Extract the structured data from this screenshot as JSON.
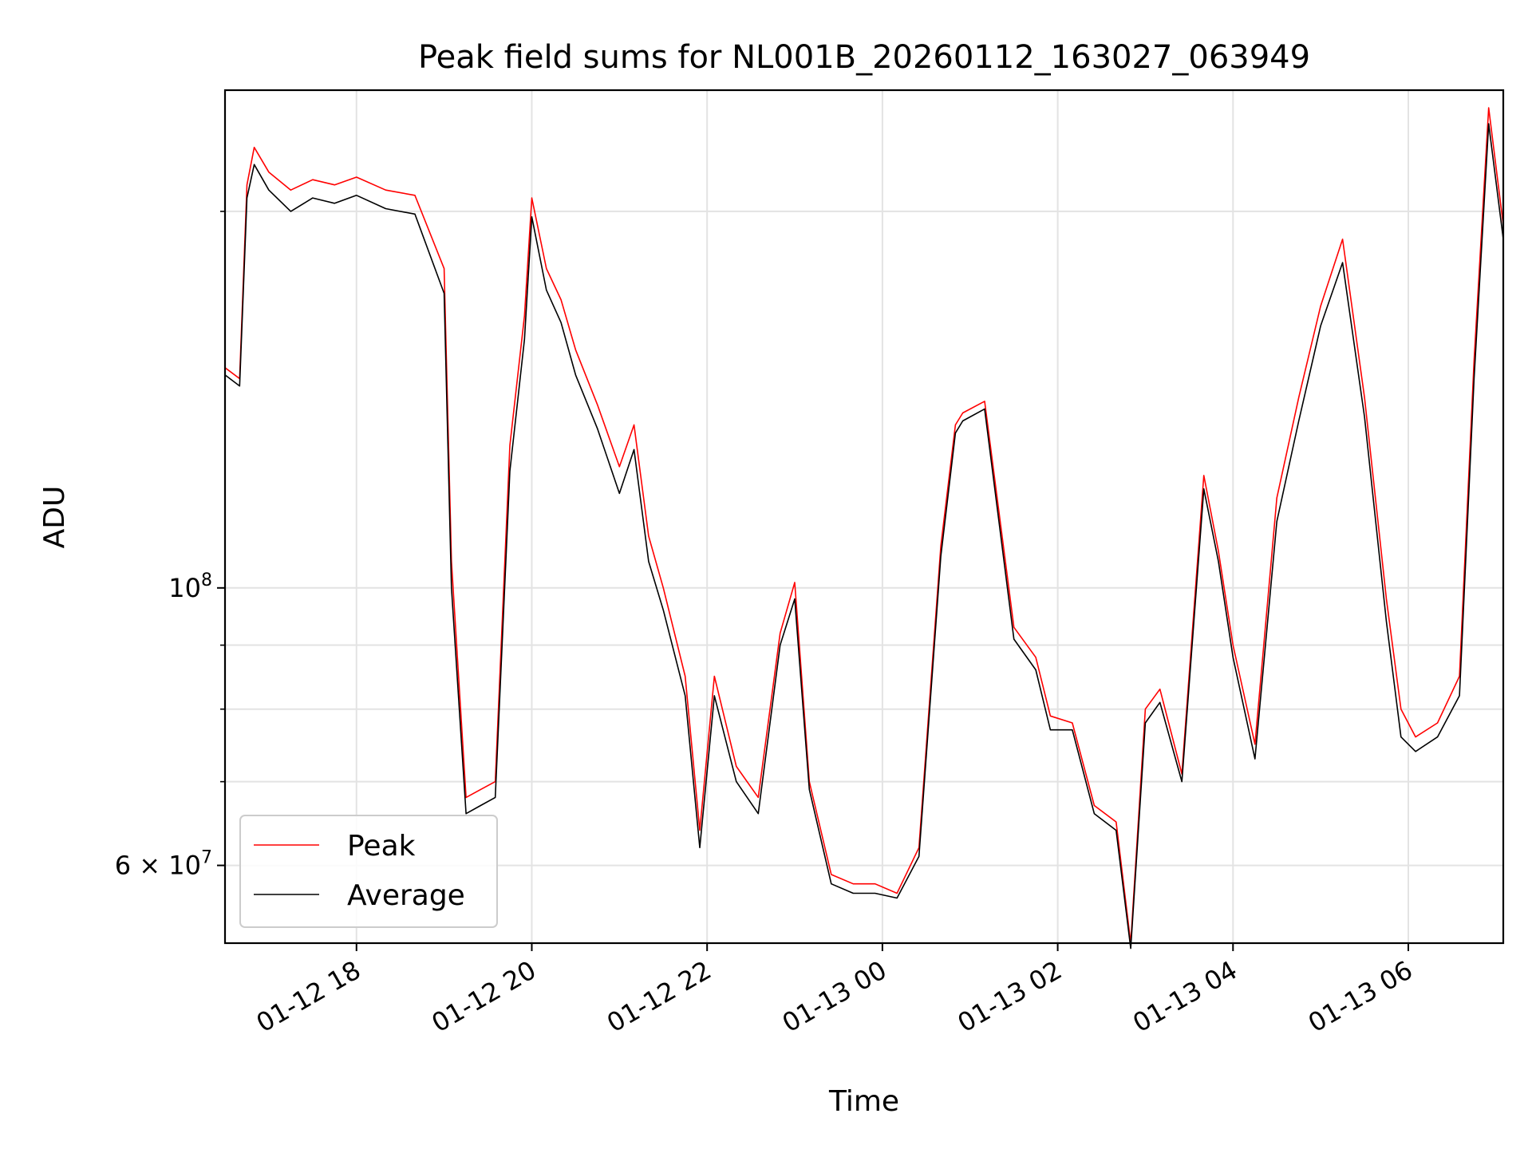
{
  "chart_data": {
    "type": "line",
    "title": "Peak field sums for NL001B_20260112_163027_063949",
    "xlabel": "Time",
    "ylabel": "ADU",
    "yscale": "log",
    "xlim": [
      "2026-01-12 16:30",
      "2026-01-13 07:05"
    ],
    "ylim": [
      52000000,
      250000000
    ],
    "grid": true,
    "legend_position": "lower-left",
    "x_ticks": [
      {
        "t": "2026-01-12 18:00",
        "label": "01-12 18"
      },
      {
        "t": "2026-01-12 20:00",
        "label": "01-12 20"
      },
      {
        "t": "2026-01-12 22:00",
        "label": "01-12 22"
      },
      {
        "t": "2026-01-13 00:00",
        "label": "01-13 00"
      },
      {
        "t": "2026-01-13 02:00",
        "label": "01-13 02"
      },
      {
        "t": "2026-01-13 04:00",
        "label": "01-13 04"
      },
      {
        "t": "2026-01-13 06:00",
        "label": "01-13 06"
      }
    ],
    "y_major_ticks": [
      {
        "value": 60000000,
        "mantissa": "6",
        "base": "10",
        "exp": "7"
      },
      {
        "value": 100000000,
        "mantissa": "",
        "base": "10",
        "exp": "8"
      }
    ],
    "y_minor_ticks": [
      70000000,
      80000000,
      90000000,
      200000000
    ],
    "series": [
      {
        "name": "Peak",
        "color": "#ff0000",
        "x": [
          "2026-01-12 16:30",
          "2026-01-12 16:40",
          "2026-01-12 16:45",
          "2026-01-12 16:50",
          "2026-01-12 17:00",
          "2026-01-12 17:15",
          "2026-01-12 17:30",
          "2026-01-12 17:45",
          "2026-01-12 18:00",
          "2026-01-12 18:20",
          "2026-01-12 18:40",
          "2026-01-12 19:00",
          "2026-01-12 19:05",
          "2026-01-12 19:15",
          "2026-01-12 19:25",
          "2026-01-12 19:35",
          "2026-01-12 19:45",
          "2026-01-12 19:55",
          "2026-01-12 20:00",
          "2026-01-12 20:10",
          "2026-01-12 20:20",
          "2026-01-12 20:30",
          "2026-01-12 20:45",
          "2026-01-12 21:00",
          "2026-01-12 21:10",
          "2026-01-12 21:20",
          "2026-01-12 21:30",
          "2026-01-12 21:45",
          "2026-01-12 21:55",
          "2026-01-12 22:05",
          "2026-01-12 22:20",
          "2026-01-12 22:35",
          "2026-01-12 22:50",
          "2026-01-12 23:00",
          "2026-01-12 23:10",
          "2026-01-12 23:25",
          "2026-01-12 23:40",
          "2026-01-12 23:55",
          "2026-01-13 00:10",
          "2026-01-13 00:25",
          "2026-01-13 00:40",
          "2026-01-13 00:50",
          "2026-01-13 00:55",
          "2026-01-13 01:10",
          "2026-01-13 01:30",
          "2026-01-13 01:45",
          "2026-01-13 01:55",
          "2026-01-13 02:10",
          "2026-01-13 02:25",
          "2026-01-13 02:40",
          "2026-01-13 02:50",
          "2026-01-13 03:00",
          "2026-01-13 03:10",
          "2026-01-13 03:25",
          "2026-01-13 03:40",
          "2026-01-13 03:50",
          "2026-01-13 04:00",
          "2026-01-13 04:15",
          "2026-01-13 04:30",
          "2026-01-13 04:45",
          "2026-01-13 05:00",
          "2026-01-13 05:15",
          "2026-01-13 05:30",
          "2026-01-13 05:45",
          "2026-01-13 05:55",
          "2026-01-13 06:05",
          "2026-01-13 06:20",
          "2026-01-13 06:35",
          "2026-01-13 06:45",
          "2026-01-13 06:55",
          "2026-01-13 07:05"
        ],
        "values": [
          150000000,
          147000000,
          210000000,
          225000000,
          215000000,
          208000000,
          212000000,
          210000000,
          213000000,
          208000000,
          206000000,
          180000000,
          105000000,
          68000000,
          69000000,
          70000000,
          130000000,
          165000000,
          205000000,
          180000000,
          170000000,
          155000000,
          140000000,
          125000000,
          135000000,
          110000000,
          100000000,
          85000000,
          64000000,
          85000000,
          72000000,
          68000000,
          92000000,
          101000000,
          70000000,
          59000000,
          58000000,
          58000000,
          57000000,
          62000000,
          108000000,
          135000000,
          138000000,
          141000000,
          93000000,
          88000000,
          79000000,
          78000000,
          67000000,
          65000000,
          52000000,
          80000000,
          83000000,
          71000000,
          123000000,
          107000000,
          90000000,
          75000000,
          118000000,
          142000000,
          168000000,
          190000000,
          142000000,
          98000000,
          80000000,
          76000000,
          78000000,
          85000000,
          152000000,
          242000000,
          195000000
        ]
      },
      {
        "name": "Average",
        "color": "#000000",
        "x": [
          "2026-01-12 16:30",
          "2026-01-12 16:40",
          "2026-01-12 16:45",
          "2026-01-12 16:50",
          "2026-01-12 17:00",
          "2026-01-12 17:15",
          "2026-01-12 17:30",
          "2026-01-12 17:45",
          "2026-01-12 18:00",
          "2026-01-12 18:20",
          "2026-01-12 18:40",
          "2026-01-12 19:00",
          "2026-01-12 19:05",
          "2026-01-12 19:15",
          "2026-01-12 19:25",
          "2026-01-12 19:35",
          "2026-01-12 19:45",
          "2026-01-12 19:55",
          "2026-01-12 20:00",
          "2026-01-12 20:10",
          "2026-01-12 20:20",
          "2026-01-12 20:30",
          "2026-01-12 20:45",
          "2026-01-12 21:00",
          "2026-01-12 21:10",
          "2026-01-12 21:20",
          "2026-01-12 21:30",
          "2026-01-12 21:45",
          "2026-01-12 21:55",
          "2026-01-12 22:05",
          "2026-01-12 22:20",
          "2026-01-12 22:35",
          "2026-01-12 22:50",
          "2026-01-12 23:00",
          "2026-01-12 23:10",
          "2026-01-12 23:25",
          "2026-01-12 23:40",
          "2026-01-12 23:55",
          "2026-01-13 00:10",
          "2026-01-13 00:25",
          "2026-01-13 00:40",
          "2026-01-13 00:50",
          "2026-01-13 00:55",
          "2026-01-13 01:10",
          "2026-01-13 01:30",
          "2026-01-13 01:45",
          "2026-01-13 01:55",
          "2026-01-13 02:10",
          "2026-01-13 02:25",
          "2026-01-13 02:40",
          "2026-01-13 02:50",
          "2026-01-13 03:00",
          "2026-01-13 03:10",
          "2026-01-13 03:25",
          "2026-01-13 03:40",
          "2026-01-13 03:50",
          "2026-01-13 04:00",
          "2026-01-13 04:15",
          "2026-01-13 04:30",
          "2026-01-13 04:45",
          "2026-01-13 05:00",
          "2026-01-13 05:15",
          "2026-01-13 05:30",
          "2026-01-13 05:45",
          "2026-01-13 05:55",
          "2026-01-13 06:05",
          "2026-01-13 06:20",
          "2026-01-13 06:35",
          "2026-01-13 06:45",
          "2026-01-13 06:55",
          "2026-01-13 07:05"
        ],
        "values": [
          148000000,
          145000000,
          205000000,
          218000000,
          208000000,
          200000000,
          205000000,
          203000000,
          206000000,
          201000000,
          199000000,
          172000000,
          100000000,
          66000000,
          67000000,
          68000000,
          124000000,
          158000000,
          198000000,
          173000000,
          163000000,
          148000000,
          134000000,
          119000000,
          129000000,
          105000000,
          96000000,
          82000000,
          62000000,
          82000000,
          70000000,
          66000000,
          90000000,
          98000000,
          69000000,
          58000000,
          57000000,
          57000000,
          56500000,
          61000000,
          106000000,
          133000000,
          136000000,
          139000000,
          91000000,
          86000000,
          77000000,
          77000000,
          66000000,
          64000000,
          51500000,
          78000000,
          81000000,
          70000000,
          120000000,
          105000000,
          88000000,
          73000000,
          113000000,
          136000000,
          162000000,
          182000000,
          137000000,
          94000000,
          76000000,
          74000000,
          76000000,
          82000000,
          147000000,
          235000000,
          190000000
        ]
      }
    ]
  }
}
